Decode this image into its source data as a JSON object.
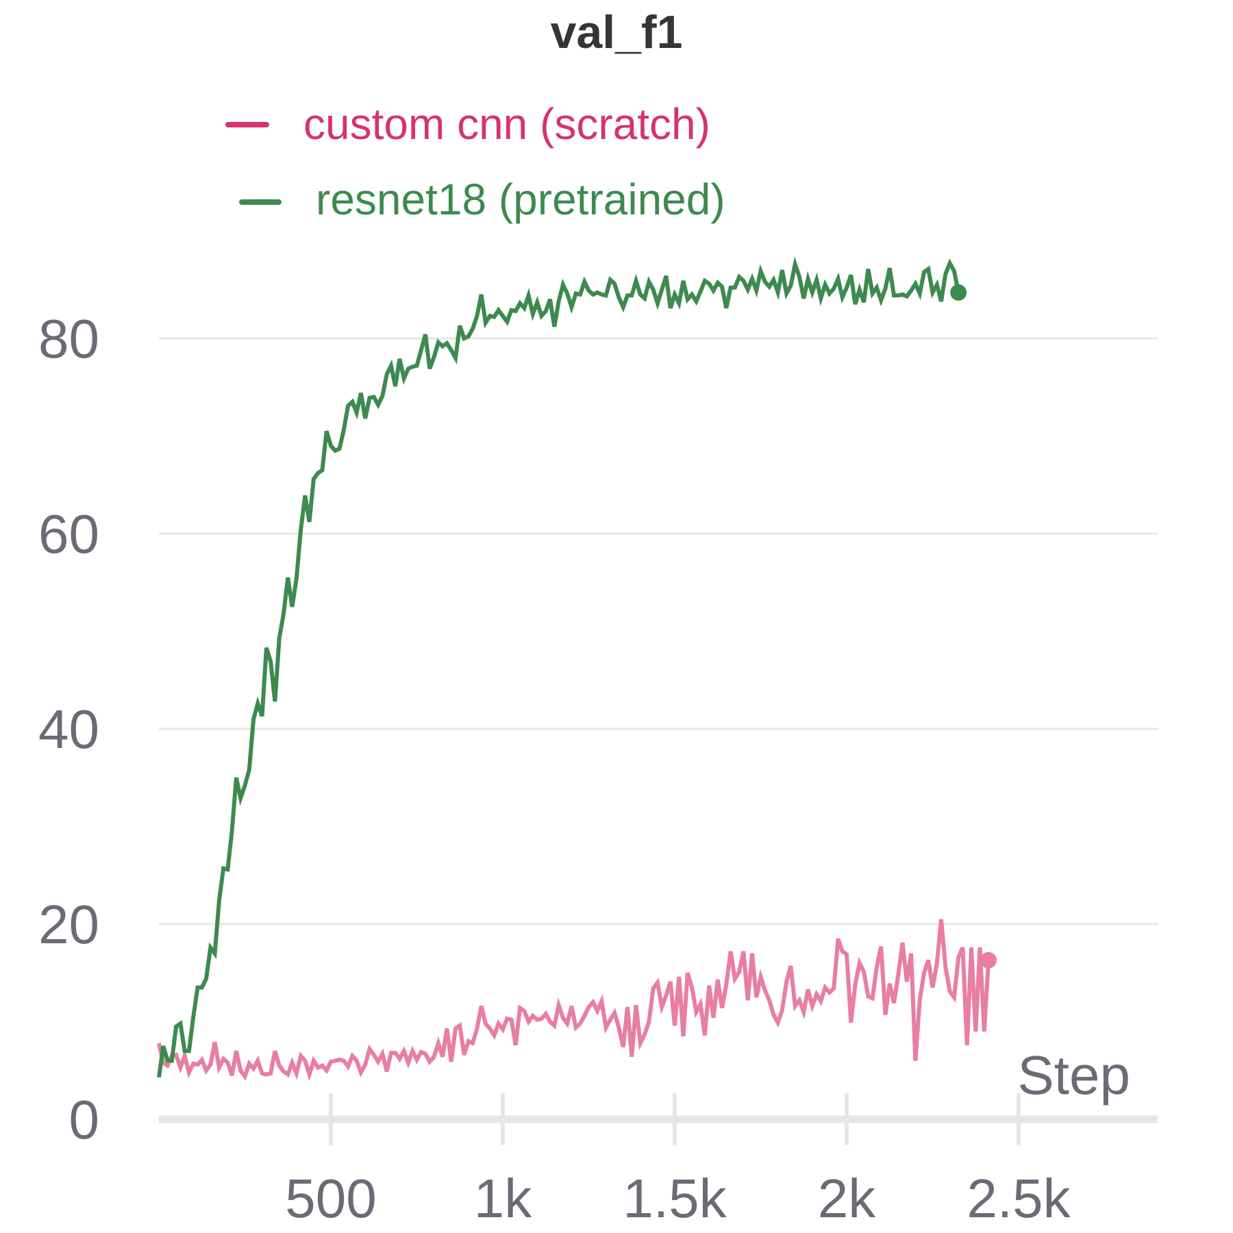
{
  "chart_data": {
    "type": "line",
    "title": "val_f1",
    "xlabel": "Step",
    "ylabel": "",
    "xlim": [
      0,
      2900
    ],
    "ylim": [
      0,
      90
    ],
    "x_ticks": [
      {
        "value": 500,
        "label": "500"
      },
      {
        "value": 1000,
        "label": "1k"
      },
      {
        "value": 1500,
        "label": "1.5k"
      },
      {
        "value": 2000,
        "label": "2k"
      },
      {
        "value": 2500,
        "label": "2.5k"
      }
    ],
    "y_ticks": [
      {
        "value": 0,
        "label": "0"
      },
      {
        "value": 20,
        "label": "20"
      },
      {
        "value": 40,
        "label": "40"
      },
      {
        "value": 60,
        "label": "60"
      },
      {
        "value": 80,
        "label": "80"
      }
    ],
    "grid": "horizontal",
    "legend_position": "top",
    "series": [
      {
        "name": "custom cnn (scratch)",
        "legend_color": "#d6336c",
        "line_color": "#e87ea1",
        "x_start": 0,
        "x_step": 12.5,
        "values": [
          7.8,
          5.8,
          5.5,
          6.5,
          6.6,
          5.3,
          6.5,
          4.8,
          5.7,
          5.6,
          6.1,
          5.0,
          5.6,
          7.9,
          5.3,
          6.2,
          5.8,
          4.5,
          7.0,
          5.0,
          4.4,
          5.7,
          5.2,
          6.0,
          4.7,
          4.6,
          4.7,
          7.0,
          5.5,
          4.9,
          4.6,
          5.8,
          4.7,
          6.5,
          6.0,
          4.6,
          6.0,
          5.3,
          5.5,
          5.0,
          5.9,
          6.0,
          6.1,
          6.0,
          5.4,
          6.5,
          6.0,
          4.8,
          5.6,
          7.2,
          6.6,
          5.9,
          6.7,
          4.9,
          6.8,
          6.8,
          6.2,
          7.0,
          5.8,
          7.0,
          6.1,
          6.9,
          6.7,
          5.9,
          6.4,
          7.8,
          6.4,
          9.3,
          5.9,
          9.3,
          9.6,
          6.6,
          8.0,
          7.8,
          9.3,
          11.6,
          9.8,
          9.3,
          8.6,
          9.8,
          9.2,
          10.3,
          10.2,
          7.6,
          11.4,
          11.1,
          10.0,
          10.6,
          10.2,
          10.3,
          10.8,
          10.0,
          9.6,
          11.7,
          10.4,
          9.8,
          11.6,
          9.4,
          9.8,
          10.6,
          11.5,
          12.0,
          11.1,
          12.1,
          9.4,
          10.2,
          10.9,
          9.4,
          7.4,
          11.5,
          6.4,
          11.7,
          7.8,
          8.7,
          10.0,
          13.4,
          14.0,
          11.5,
          12.7,
          14.1,
          9.6,
          14.6,
          8.5,
          15.0,
          13.5,
          11.0,
          11.8,
          8.6,
          13.7,
          10.4,
          14.3,
          11.4,
          13.8,
          17.2,
          14.4,
          15.1,
          17.2,
          12.2,
          17.0,
          12.5,
          14.6,
          13.2,
          12.2,
          10.7,
          9.9,
          11.2,
          14.1,
          15.7,
          11.6,
          12.2,
          11.0,
          13.3,
          11.6,
          12.8,
          12.1,
          13.5,
          13.0,
          13.4,
          18.5,
          17.2,
          16.9,
          9.9,
          13.8,
          16.0,
          15.1,
          12.6,
          12.4,
          15.6,
          17.7,
          10.7,
          13.9,
          11.9,
          14.8,
          18.1,
          14.1,
          17.0,
          6.0,
          12.2,
          15.0,
          16.3,
          13.5,
          16.0,
          20.5,
          15.6,
          13.1,
          12.5,
          16.6,
          17.6,
          7.6,
          17.6,
          9.0,
          17.6,
          9.0,
          16.3
        ]
      },
      {
        "name": "resnet18 (pretrained)",
        "legend_color": "#3d8a4f",
        "line_color": "#3d8a4f",
        "x_start": 0,
        "x_step": 12.5,
        "values": [
          4.3,
          7.5,
          6.0,
          6.0,
          9.5,
          9.8,
          7.0,
          7.0,
          10.5,
          13.5,
          13.5,
          14.4,
          17.6,
          17.0,
          22.4,
          25.7,
          25.6,
          29.6,
          35.0,
          32.9,
          34.2,
          35.8,
          41.0,
          42.6,
          41.3,
          48.3,
          46.9,
          42.8,
          49.3,
          51.8,
          55.5,
          52.5,
          55.4,
          60.4,
          63.9,
          61.2,
          65.6,
          66.2,
          66.5,
          70.5,
          69.0,
          68.5,
          68.7,
          70.6,
          73.1,
          73.5,
          72.4,
          74.4,
          71.8,
          73.9,
          74.0,
          73.2,
          74.1,
          76.3,
          77.2,
          75.1,
          77.9,
          75.9,
          76.9,
          77.1,
          77.2,
          78.8,
          80.4,
          76.9,
          78.1,
          79.6,
          79.2,
          79.5,
          78.8,
          78.0,
          81.3,
          80.0,
          80.2,
          81.0,
          82.3,
          84.5,
          81.6,
          82.3,
          82.2,
          82.9,
          82.3,
          81.7,
          82.9,
          82.8,
          83.6,
          83.1,
          84.4,
          82.5,
          83.7,
          82.3,
          82.8,
          84.0,
          81.2,
          83.8,
          85.5,
          84.6,
          83.2,
          84.6,
          84.5,
          85.8,
          84.9,
          84.5,
          84.7,
          84.5,
          84.4,
          86.0,
          85.6,
          84.2,
          83.2,
          84.4,
          84.4,
          85.9,
          84.5,
          84.1,
          85.8,
          85.0,
          83.6,
          85.0,
          86.4,
          83.1,
          84.5,
          83.6,
          85.9,
          84.0,
          84.5,
          83.8,
          84.8,
          85.9,
          85.6,
          84.9,
          85.7,
          85.3,
          83.1,
          85.2,
          85.2,
          86.3,
          85.9,
          85.0,
          86.1,
          84.9,
          86.9,
          85.8,
          85.3,
          86.0,
          84.7,
          87.0,
          84.6,
          85.4,
          87.6,
          86.3,
          84.1,
          86.1,
          84.7,
          86.0,
          84.1,
          85.5,
          84.6,
          85.1,
          86.1,
          84.2,
          85.2,
          86.5,
          83.5,
          85.0,
          83.7,
          87.1,
          84.6,
          85.2,
          83.9,
          85.1,
          87.2,
          84.4,
          84.4,
          84.5,
          84.3,
          84.9,
          85.6,
          84.6,
          86.8,
          87.1,
          84.7,
          85.5,
          83.8,
          86.6,
          87.7,
          86.9,
          84.7
        ]
      }
    ]
  }
}
